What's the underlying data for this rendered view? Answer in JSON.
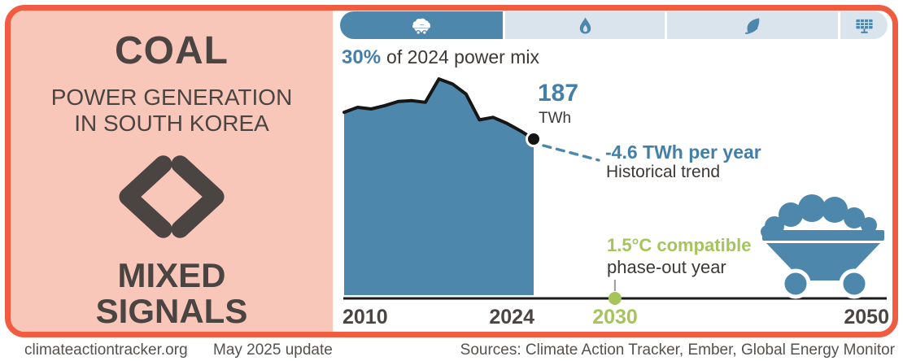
{
  "card": {
    "left_panel": {
      "title": "COAL",
      "subtitle_line1": "POWER GENERATION",
      "subtitle_line2": "IN SOUTH KOREA",
      "rating_icon": "angle-brackets-icon",
      "rating_line1": "MIXED",
      "rating_line2": "SIGNALS"
    },
    "tabs": [
      {
        "id": "coal",
        "icon": "coal-cart-icon",
        "active": true
      },
      {
        "id": "gas",
        "icon": "flame-icon",
        "active": false
      },
      {
        "id": "bioenergy",
        "icon": "leaf-icon",
        "active": false
      },
      {
        "id": "solar",
        "icon": "solar-panel-icon",
        "active": false
      }
    ],
    "power_mix": {
      "value": "30%",
      "rest": "of 2024 power mix"
    },
    "current": {
      "value": "187",
      "unit": "TWh"
    },
    "trend": {
      "value": "-4.6 TWh per year",
      "label": "Historical trend"
    },
    "phase_out": {
      "highlight": "1.5°C compatible",
      "label": "phase-out year",
      "year": "2030"
    }
  },
  "footer": {
    "site": "climateactiontracker.org",
    "update": "May 2025 update",
    "sources": "Sources: Climate Action Tracker, Ember, Global Energy Monitor"
  },
  "colors": {
    "accent_orange": "#f15b40",
    "panel_pink": "#f9c7b9",
    "text_dark": "#4a4442",
    "blue": "#4d87ab",
    "blue_text": "#4380a9",
    "tab_inactive": "#dae4ec",
    "green": "#a5c45c",
    "axis_black": "#1a1a1a"
  },
  "chart_data": {
    "type": "area",
    "title": "Coal power generation in South Korea",
    "ylabel": "TWh",
    "x": [
      2010,
      2011,
      2012,
      2013,
      2014,
      2015,
      2016,
      2017,
      2018,
      2019,
      2020,
      2021,
      2022,
      2023,
      2024
    ],
    "values": [
      219,
      225,
      223,
      227,
      232,
      233,
      231,
      259,
      253,
      241,
      210,
      213,
      206,
      197,
      187
    ],
    "xlim": [
      2010,
      2050
    ],
    "ylim": [
      0,
      273
    ],
    "axis_ticks": [
      "2010",
      "2024",
      "2030",
      "2050"
    ],
    "grid": false,
    "legend": false,
    "annotations": [
      {
        "x": 2024,
        "value": 187,
        "label": "187 TWh",
        "marker": "black-dot"
      },
      {
        "label": "-4.6 TWh per year",
        "sublabel": "Historical trend",
        "style": "dashed-trend"
      },
      {
        "x": 2030,
        "label": "1.5°C compatible phase-out year",
        "marker": "green-dot"
      }
    ]
  }
}
